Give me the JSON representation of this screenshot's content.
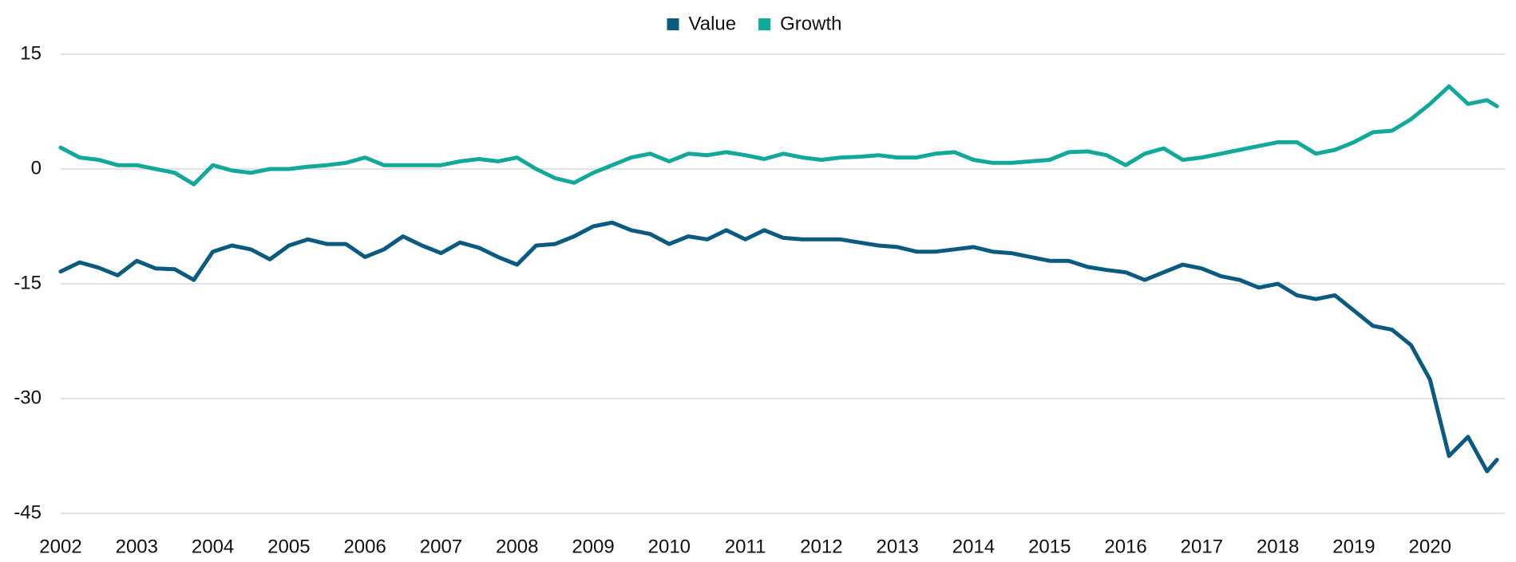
{
  "chart_data": {
    "type": "line",
    "legend": "top",
    "grid": true,
    "x": [
      2002,
      2002.25,
      2002.5,
      2002.75,
      2003,
      2003.25,
      2003.5,
      2003.75,
      2004,
      2004.25,
      2004.5,
      2004.75,
      2005,
      2005.25,
      2005.5,
      2005.75,
      2006,
      2006.25,
      2006.5,
      2006.75,
      2007,
      2007.25,
      2007.5,
      2007.75,
      2008,
      2008.25,
      2008.5,
      2008.75,
      2009,
      2009.25,
      2009.5,
      2009.75,
      2010,
      2010.25,
      2010.5,
      2010.75,
      2011,
      2011.25,
      2011.5,
      2011.75,
      2012,
      2012.25,
      2012.5,
      2012.75,
      2013,
      2013.25,
      2013.5,
      2013.75,
      2014,
      2014.25,
      2014.5,
      2014.75,
      2015,
      2015.25,
      2015.5,
      2015.75,
      2016,
      2016.25,
      2016.5,
      2016.75,
      2017,
      2017.25,
      2017.5,
      2017.75,
      2018,
      2018.25,
      2018.5,
      2018.75,
      2019,
      2019.25,
      2019.5,
      2019.75,
      2020,
      2020.25,
      2020.5,
      2020.75,
      2020.88
    ],
    "series": [
      {
        "name": "Value",
        "color": "#0b5a80",
        "values": [
          -13.4,
          -12.2,
          -12.9,
          -13.9,
          -12.0,
          -13.0,
          -13.1,
          -14.5,
          -10.8,
          -10.0,
          -10.5,
          -11.8,
          -10.0,
          -9.2,
          -9.8,
          -9.8,
          -11.5,
          -10.5,
          -8.8,
          -10.0,
          -11.0,
          -9.6,
          -10.3,
          -11.5,
          -12.5,
          -10.0,
          -9.8,
          -8.8,
          -7.5,
          -7.0,
          -8.0,
          -8.5,
          -9.8,
          -8.8,
          -9.2,
          -8.0,
          -9.2,
          -8.0,
          -9.0,
          -9.2,
          -9.2,
          -9.2,
          -9.6,
          -10.0,
          -10.2,
          -10.8,
          -10.8,
          -10.5,
          -10.2,
          -10.8,
          -11.0,
          -11.5,
          -12.0,
          -12.0,
          -12.8,
          -13.2,
          -13.5,
          -14.5,
          -13.5,
          -12.5,
          -13.0,
          -14.0,
          -14.5,
          -15.5,
          -15.0,
          -16.5,
          -17.0,
          -16.5,
          -18.5,
          -20.5,
          -21.0,
          -23.0,
          -27.5,
          -37.5,
          -35.0,
          -39.5,
          -38.0
        ]
      },
      {
        "name": "Growth",
        "color": "#12a89a",
        "values": [
          2.8,
          1.5,
          1.2,
          0.5,
          0.5,
          0.0,
          -0.5,
          -2.0,
          0.5,
          -0.2,
          -0.5,
          0.0,
          0.0,
          0.3,
          0.5,
          0.8,
          1.5,
          0.5,
          0.5,
          0.5,
          0.5,
          1.0,
          1.3,
          1.0,
          1.5,
          0.0,
          -1.2,
          -1.8,
          -0.5,
          0.5,
          1.5,
          2.0,
          1.0,
          2.0,
          1.8,
          2.2,
          1.8,
          1.3,
          2.0,
          1.5,
          1.2,
          1.5,
          1.6,
          1.8,
          1.5,
          1.5,
          2.0,
          2.2,
          1.2,
          0.8,
          0.8,
          1.0,
          1.2,
          2.2,
          2.3,
          1.8,
          0.5,
          2.0,
          2.7,
          1.2,
          1.5,
          2.0,
          2.5,
          3.0,
          3.5,
          3.5,
          2.0,
          2.5,
          3.5,
          4.8,
          5.0,
          6.5,
          8.5,
          10.8,
          8.5,
          9.0,
          8.2
        ]
      }
    ],
    "xlim": [
      2002,
      2020.9
    ],
    "xticks": [
      2002,
      2003,
      2004,
      2005,
      2006,
      2007,
      2008,
      2009,
      2010,
      2011,
      2012,
      2013,
      2014,
      2015,
      2016,
      2017,
      2018,
      2019,
      2020
    ],
    "ylim": [
      -45,
      15
    ],
    "yticks": [
      15,
      0,
      -15,
      -30,
      -45
    ]
  }
}
